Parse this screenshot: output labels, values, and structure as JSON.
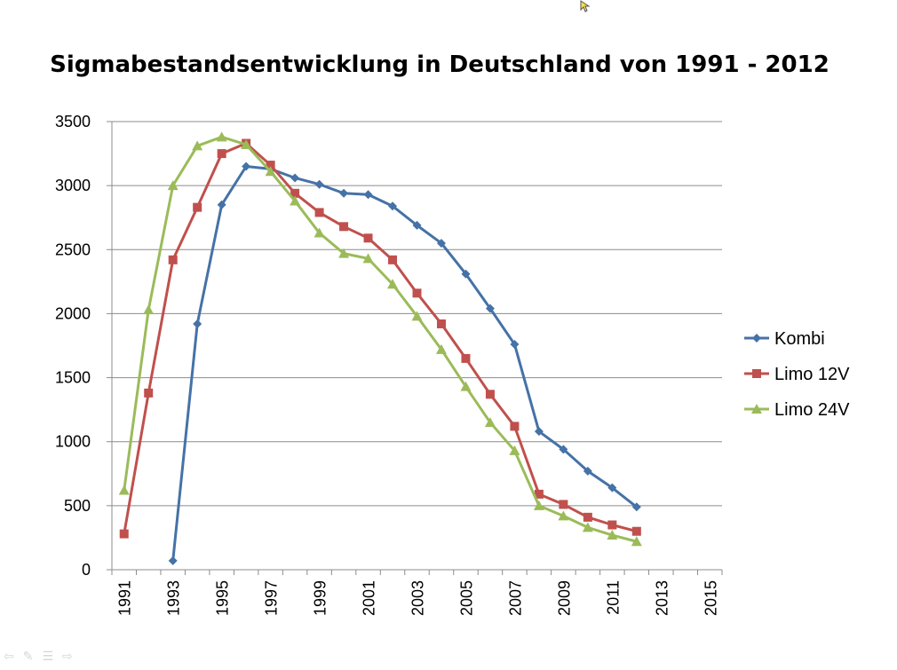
{
  "chart_data": {
    "type": "line",
    "title": "Sigmabestandsentwicklung in Deutschland von 1991 - 2012",
    "xlabel": "",
    "ylabel": "",
    "ylim": [
      0,
      3500
    ],
    "yticks": [
      0,
      500,
      1000,
      1500,
      2000,
      2500,
      3000,
      3500
    ],
    "xlim": [
      1991,
      2016
    ],
    "xticks": [
      1991,
      1993,
      1995,
      1997,
      1999,
      2001,
      2003,
      2005,
      2007,
      2009,
      2011,
      2013,
      2015
    ],
    "grid": "horizontal",
    "legend": "right",
    "series": [
      {
        "name": "Kombi",
        "color": "#4572A7",
        "marker": "diamond",
        "x": [
          1993,
          1994,
          1995,
          1996,
          1997,
          1998,
          1999,
          2000,
          2001,
          2002,
          2003,
          2004,
          2005,
          2006,
          2007,
          2008,
          2009,
          2010,
          2011,
          2012
        ],
        "values": [
          70,
          1920,
          2850,
          3150,
          3130,
          3060,
          3010,
          2940,
          2930,
          2840,
          2690,
          2550,
          2310,
          2040,
          1760,
          1080,
          940,
          770,
          640,
          490
        ]
      },
      {
        "name": "Limo 12V",
        "color": "#C0504D",
        "marker": "square",
        "x": [
          1991,
          1992,
          1993,
          1994,
          1995,
          1996,
          1997,
          1998,
          1999,
          2000,
          2001,
          2002,
          2003,
          2004,
          2005,
          2006,
          2007,
          2008,
          2009,
          2010,
          2011,
          2012
        ],
        "values": [
          280,
          1380,
          2420,
          2830,
          3250,
          3330,
          3160,
          2940,
          2790,
          2680,
          2590,
          2420,
          2160,
          1920,
          1650,
          1370,
          1120,
          590,
          510,
          410,
          350,
          300
        ]
      },
      {
        "name": "Limo 24V",
        "color": "#9BBB59",
        "marker": "triangle",
        "x": [
          1991,
          1992,
          1993,
          1994,
          1995,
          1996,
          1997,
          1998,
          1999,
          2000,
          2001,
          2002,
          2003,
          2004,
          2005,
          2006,
          2007,
          2008,
          2009,
          2010,
          2011,
          2012
        ],
        "values": [
          620,
          2030,
          3000,
          3310,
          3380,
          3320,
          3110,
          2880,
          2630,
          2470,
          2430,
          2230,
          1980,
          1720,
          1430,
          1150,
          930,
          500,
          420,
          330,
          270,
          220
        ]
      }
    ]
  }
}
